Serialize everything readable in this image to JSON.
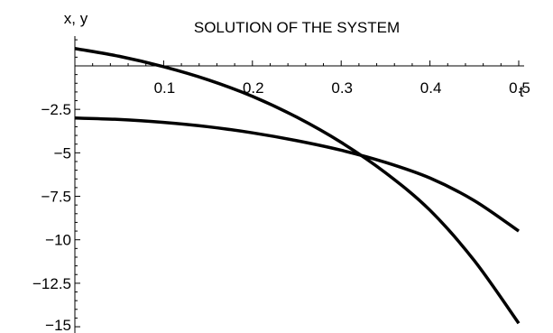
{
  "chart_data": {
    "type": "line",
    "title": "SOLUTION OF THE SYSTEM",
    "xlabel": "t",
    "ylabel": "x, y",
    "xlim": [
      0,
      0.5
    ],
    "ylim": [
      -15,
      1.8
    ],
    "grid": false,
    "x_ticks": [
      0.1,
      0.2,
      0.3,
      0.4,
      0.5
    ],
    "x_tick_labels": [
      "0.1",
      "0.2",
      "0.3",
      "0.4",
      "0.5"
    ],
    "y_ticks": [
      -2.5,
      -5,
      -7.5,
      -10,
      -12.5,
      -15
    ],
    "y_tick_labels": [
      "−2.5",
      "−5",
      "−7.5",
      "−10",
      "−12.5",
      "−15"
    ],
    "series": [
      {
        "x": [
          0,
          0.05,
          0.1,
          0.15,
          0.2,
          0.25,
          0.3,
          0.35,
          0.4,
          0.45,
          0.5
        ],
        "values": [
          1.0,
          0.55,
          -0.05,
          -0.8,
          -1.75,
          -2.95,
          -4.4,
          -6.15,
          -8.3,
          -11.2,
          -14.8
        ]
      },
      {
        "x": [
          0,
          0.05,
          0.1,
          0.15,
          0.2,
          0.25,
          0.3,
          0.35,
          0.4,
          0.45,
          0.5
        ],
        "values": [
          -3.0,
          -3.08,
          -3.25,
          -3.5,
          -3.85,
          -4.3,
          -4.85,
          -5.55,
          -6.45,
          -7.75,
          -9.5
        ]
      }
    ]
  }
}
